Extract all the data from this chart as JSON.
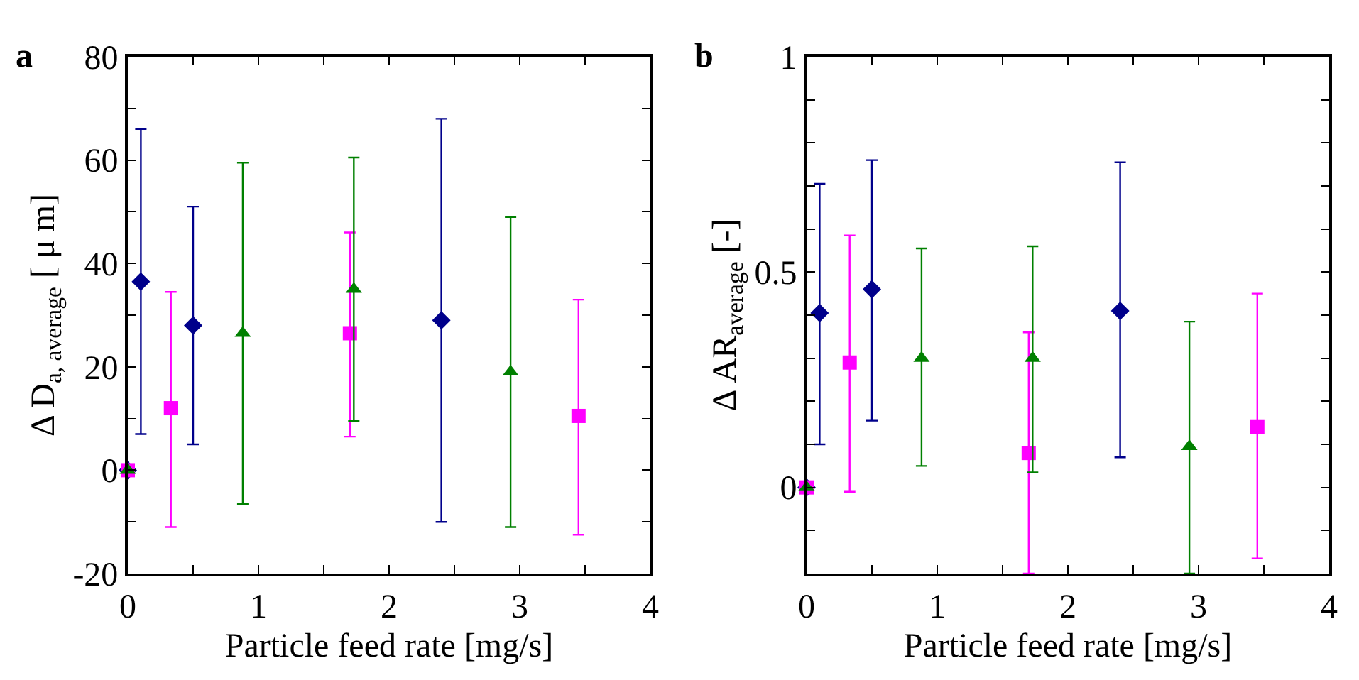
{
  "chart_data": [
    {
      "type": "scatter",
      "annotations": [
        "a"
      ],
      "xlabel": "Particle feed rate [mg/s]",
      "ylabel": "Δ D$_{a, average}$ [ μ m]",
      "xlim": [
        0,
        4
      ],
      "xticks": [
        0,
        {
          "value": 0.5,
          "label": null
        },
        1,
        {
          "value": 1.5,
          "label": null
        },
        2,
        {
          "value": 2.5,
          "label": null
        },
        3,
        {
          "value": 3.5,
          "label": null
        },
        4
      ],
      "ylim": [
        -20,
        80
      ],
      "yticks": [
        -20,
        {
          "value": -10,
          "label": null
        },
        0,
        {
          "value": 10,
          "label": null
        },
        20,
        {
          "value": 30,
          "label": null
        },
        40,
        {
          "value": 50,
          "label": null
        },
        60,
        {
          "value": 70,
          "label": null
        },
        80
      ],
      "grid": false,
      "series": [
        {
          "color": "#00008b",
          "marker": "diamond",
          "x": [
            0,
            0.1,
            0.5,
            2.4
          ],
          "values": [
            0,
            36.5,
            28,
            29
          ],
          "errors": [
            null,
            [
              7,
              66
            ],
            [
              5,
              51
            ],
            [
              -10,
              68
            ]
          ]
        },
        {
          "color": "#ff00ff",
          "marker": "square",
          "x": [
            0,
            0.33,
            1.7,
            3.45
          ],
          "values": [
            0,
            12,
            26.5,
            10.5
          ],
          "errors": [
            null,
            [
              -11,
              34.5
            ],
            [
              6.5,
              46
            ],
            [
              -12.5,
              33
            ]
          ]
        },
        {
          "color": "#008000",
          "marker": "triangle",
          "x": [
            0,
            0.88,
            1.73,
            2.93
          ],
          "values": [
            0,
            26.5,
            35,
            19
          ],
          "errors": [
            null,
            [
              -6.5,
              59.5
            ],
            [
              9.5,
              60.5
            ],
            [
              -11,
              49
            ]
          ]
        }
      ]
    },
    {
      "type": "scatter",
      "annotations": [
        "b"
      ],
      "xlabel": "Particle feed rate [mg/s]",
      "ylabel": "Δ AR$_{average}$ [-]",
      "xlim": [
        0,
        4
      ],
      "xticks": [
        0,
        {
          "value": 0.5,
          "label": null
        },
        1,
        {
          "value": 1.5,
          "label": null
        },
        2,
        {
          "value": 2.5,
          "label": null
        },
        3,
        {
          "value": 3.5,
          "label": null
        },
        4
      ],
      "ylim": [
        -0.2,
        1
      ],
      "yticks": [
        {
          "value": -0.1,
          "label": null
        },
        0,
        {
          "value": 0.1,
          "label": null
        },
        {
          "value": 0.2,
          "label": null
        },
        {
          "value": 0.3,
          "label": null
        },
        {
          "value": 0.4,
          "label": null
        },
        0.5,
        {
          "value": 0.6,
          "label": null
        },
        {
          "value": 0.7,
          "label": null
        },
        {
          "value": 0.8,
          "label": null
        },
        {
          "value": 0.9,
          "label": null
        },
        1
      ],
      "grid": false,
      "series": [
        {
          "color": "#00008b",
          "marker": "diamond",
          "x": [
            0,
            0.1,
            0.5,
            2.4
          ],
          "values": [
            0,
            0.405,
            0.46,
            0.41
          ],
          "errors": [
            null,
            [
              0.1,
              0.705
            ],
            [
              0.155,
              0.76
            ],
            [
              0.07,
              0.755
            ]
          ]
        },
        {
          "color": "#ff00ff",
          "marker": "square",
          "x": [
            0,
            0.33,
            1.7,
            3.45
          ],
          "values": [
            0,
            0.29,
            0.08,
            0.14
          ],
          "errors": [
            null,
            [
              -0.01,
              0.585
            ],
            [
              -0.2,
              0.36
            ],
            [
              -0.165,
              0.45
            ]
          ]
        },
        {
          "color": "#008000",
          "marker": "triangle",
          "x": [
            0,
            0.88,
            1.73,
            2.93
          ],
          "values": [
            0,
            0.3,
            0.3,
            0.095
          ],
          "errors": [
            null,
            [
              0.05,
              0.555
            ],
            [
              0.035,
              0.56
            ],
            [
              -0.2,
              0.385
            ]
          ]
        }
      ]
    }
  ]
}
